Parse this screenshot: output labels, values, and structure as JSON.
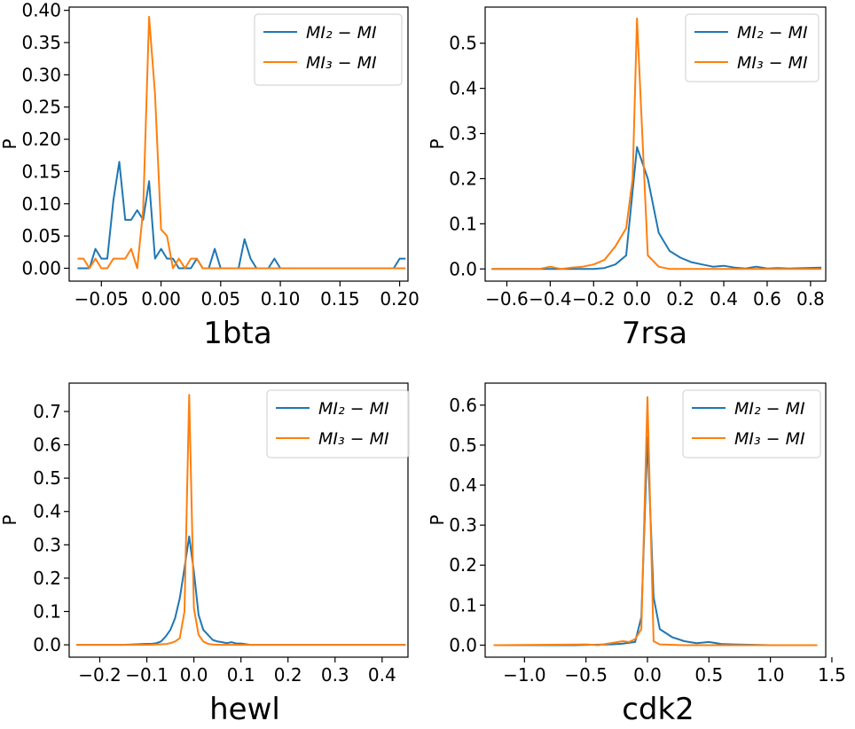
{
  "colors": {
    "series1": "#1f77b4",
    "series2": "#ff7f0e"
  },
  "chart_data": [
    {
      "type": "line",
      "caption": "1bta",
      "ylabel": "P",
      "xlim": [
        -0.077,
        0.207
      ],
      "ylim": [
        -0.02,
        0.405
      ],
      "xticks": [
        -0.05,
        0.0,
        0.05,
        0.1,
        0.15,
        0.2
      ],
      "xtick_labels": [
        "−0.05",
        "0.00",
        "0.05",
        "0.10",
        "0.15",
        "0.20"
      ],
      "yticks": [
        0.0,
        0.05,
        0.1,
        0.15,
        0.2,
        0.25,
        0.3,
        0.35,
        0.4
      ],
      "ytick_labels": [
        "0.00",
        "0.05",
        "0.10",
        "0.15",
        "0.20",
        "0.25",
        "0.30",
        "0.35",
        "0.40"
      ],
      "legend": "top-right",
      "grid": false,
      "series": [
        {
          "name": "MI₂ − MI",
          "x": [
            -0.07,
            -0.065,
            -0.06,
            -0.055,
            -0.05,
            -0.045,
            -0.04,
            -0.035,
            -0.03,
            -0.025,
            -0.02,
            -0.015,
            -0.01,
            -0.005,
            0.0,
            0.005,
            0.01,
            0.015,
            0.02,
            0.025,
            0.03,
            0.035,
            0.04,
            0.045,
            0.05,
            0.055,
            0.06,
            0.065,
            0.07,
            0.075,
            0.08,
            0.085,
            0.09,
            0.095,
            0.1,
            0.105,
            0.11,
            0.115,
            0.12,
            0.15,
            0.195,
            0.2,
            0.205
          ],
          "y": [
            0.0,
            0.0,
            0.0,
            0.03,
            0.015,
            0.015,
            0.105,
            0.165,
            0.075,
            0.075,
            0.09,
            0.075,
            0.135,
            0.015,
            0.03,
            0.015,
            0.015,
            0.0,
            0.0,
            0.0,
            0.015,
            0.0,
            0.0,
            0.03,
            0.0,
            0.0,
            0.0,
            0.0,
            0.045,
            0.015,
            0.0,
            0.0,
            0.0,
            0.015,
            0.0,
            0.0,
            0.0,
            0.0,
            0.0,
            0.0,
            0.0,
            0.015,
            0.015
          ]
        },
        {
          "name": "MI₃ − MI",
          "x": [
            -0.07,
            -0.065,
            -0.06,
            -0.055,
            -0.05,
            -0.045,
            -0.04,
            -0.035,
            -0.03,
            -0.025,
            -0.02,
            -0.015,
            -0.01,
            -0.005,
            0.0,
            0.005,
            0.01,
            0.015,
            0.02,
            0.025,
            0.03,
            0.035,
            0.04,
            0.045,
            0.05,
            0.1,
            0.15,
            0.2,
            0.205
          ],
          "y": [
            0.015,
            0.015,
            0.0,
            0.015,
            0.0,
            0.0,
            0.015,
            0.015,
            0.015,
            0.03,
            0.0,
            0.09,
            0.39,
            0.27,
            0.06,
            0.05,
            0.0,
            0.015,
            0.0,
            0.015,
            0.015,
            0.0,
            0.0,
            0.0,
            0.0,
            0.0,
            0.0,
            0.0,
            0.0
          ]
        }
      ]
    },
    {
      "type": "line",
      "caption": "7rsa",
      "ylabel": "P",
      "xlim": [
        -0.7,
        0.87
      ],
      "ylim": [
        -0.027,
        0.58
      ],
      "xticks": [
        -0.6,
        -0.4,
        -0.2,
        0.0,
        0.2,
        0.4,
        0.6,
        0.8
      ],
      "xtick_labels": [
        "−0.6",
        "−0.4",
        "−0.2",
        "0.0",
        "0.2",
        "0.4",
        "0.6",
        "0.8"
      ],
      "yticks": [
        0.0,
        0.1,
        0.2,
        0.3,
        0.4,
        0.5
      ],
      "ytick_labels": [
        "0.0",
        "0.1",
        "0.2",
        "0.3",
        "0.4",
        "0.5"
      ],
      "legend": "top-right",
      "grid": false,
      "series": [
        {
          "name": "MI₂ − MI",
          "x": [
            -0.67,
            -0.4,
            -0.3,
            -0.2,
            -0.15,
            -0.1,
            -0.05,
            0.0,
            0.05,
            0.1,
            0.15,
            0.2,
            0.25,
            0.3,
            0.35,
            0.4,
            0.45,
            0.5,
            0.55,
            0.6,
            0.65,
            0.7,
            0.85
          ],
          "y": [
            0.0,
            0.0,
            0.0,
            0.0,
            0.002,
            0.01,
            0.03,
            0.27,
            0.2,
            0.08,
            0.04,
            0.025,
            0.015,
            0.01,
            0.005,
            0.007,
            0.003,
            0.001,
            0.005,
            0.001,
            0.002,
            0.001,
            0.003
          ]
        },
        {
          "name": "MI₃ − MI",
          "x": [
            -0.67,
            -0.45,
            -0.4,
            -0.35,
            -0.3,
            -0.25,
            -0.2,
            -0.15,
            -0.1,
            -0.05,
            -0.02,
            0.0,
            0.05,
            0.1,
            0.15,
            0.2,
            0.3,
            0.5,
            0.85
          ],
          "y": [
            0.0,
            0.0,
            0.005,
            0.0,
            0.003,
            0.005,
            0.01,
            0.02,
            0.05,
            0.09,
            0.2,
            0.555,
            0.03,
            0.005,
            0.0,
            0.0,
            0.0,
            0.0,
            0.0
          ]
        }
      ]
    },
    {
      "type": "line",
      "caption": "hewl",
      "ylabel": "P",
      "xlim": [
        -0.265,
        0.455
      ],
      "ylim": [
        -0.037,
        0.785
      ],
      "xticks": [
        -0.2,
        -0.1,
        0.0,
        0.1,
        0.2,
        0.3,
        0.4
      ],
      "xtick_labels": [
        "−0.2",
        "−0.1",
        "0.0",
        "0.1",
        "0.2",
        "0.3",
        "0.4"
      ],
      "yticks": [
        0.0,
        0.1,
        0.2,
        0.3,
        0.4,
        0.5,
        0.6,
        0.7
      ],
      "ytick_labels": [
        "0.0",
        "0.1",
        "0.2",
        "0.3",
        "0.4",
        "0.5",
        "0.6",
        "0.7"
      ],
      "legend": "top-right",
      "grid": false,
      "series": [
        {
          "name": "MI₂ − MI",
          "x": [
            -0.25,
            -0.15,
            -0.1,
            -0.09,
            -0.08,
            -0.07,
            -0.06,
            -0.05,
            -0.04,
            -0.03,
            -0.02,
            -0.01,
            0.0,
            0.01,
            0.02,
            0.03,
            0.04,
            0.05,
            0.06,
            0.07,
            0.08,
            0.09,
            0.1,
            0.12,
            0.2,
            0.3,
            0.45
          ],
          "y": [
            0.0,
            0.0,
            0.003,
            0.003,
            0.005,
            0.01,
            0.025,
            0.045,
            0.08,
            0.14,
            0.23,
            0.325,
            0.22,
            0.09,
            0.045,
            0.03,
            0.015,
            0.01,
            0.008,
            0.005,
            0.008,
            0.004,
            0.004,
            0.0,
            0.0,
            0.0,
            0.0
          ]
        },
        {
          "name": "MI₃ − MI",
          "x": [
            -0.25,
            -0.1,
            -0.06,
            -0.05,
            -0.04,
            -0.03,
            -0.02,
            -0.01,
            0.0,
            0.01,
            0.02,
            0.03,
            0.04,
            0.06,
            0.1,
            0.2,
            0.45
          ],
          "y": [
            0.0,
            0.0,
            0.002,
            0.005,
            0.01,
            0.02,
            0.1,
            0.75,
            0.11,
            0.03,
            0.01,
            0.003,
            0.001,
            0.0,
            0.0,
            0.0,
            0.0
          ]
        }
      ]
    },
    {
      "type": "line",
      "caption": "cdk2",
      "ylabel": "P",
      "xlim": [
        -1.32,
        1.45
      ],
      "ylim": [
        -0.03,
        0.655
      ],
      "xticks": [
        -1.0,
        -0.5,
        0.0,
        0.5,
        1.0,
        1.5
      ],
      "xtick_labels": [
        "−1.0",
        "−0.5",
        "0.0",
        "0.5",
        "1.0",
        "1.5"
      ],
      "yticks": [
        0.0,
        0.1,
        0.2,
        0.3,
        0.4,
        0.5,
        0.6
      ],
      "ytick_labels": [
        "0.0",
        "0.1",
        "0.2",
        "0.3",
        "0.4",
        "0.5",
        "0.6"
      ],
      "legend": "top-right",
      "grid": false,
      "series": [
        {
          "name": "MI₂ − MI",
          "x": [
            -1.25,
            -0.6,
            -0.3,
            -0.2,
            -0.1,
            -0.05,
            0.0,
            0.05,
            0.1,
            0.2,
            0.3,
            0.4,
            0.5,
            0.6,
            0.7,
            1.0,
            1.38
          ],
          "y": [
            0.0,
            0.0,
            0.002,
            0.004,
            0.008,
            0.07,
            0.52,
            0.12,
            0.04,
            0.02,
            0.01,
            0.005,
            0.008,
            0.003,
            0.002,
            0.0,
            0.0
          ]
        },
        {
          "name": "MI₃ − MI",
          "x": [
            -1.25,
            -0.5,
            -0.4,
            -0.3,
            -0.2,
            -0.15,
            -0.1,
            -0.05,
            0.0,
            0.05,
            0.1,
            0.3,
            0.6,
            1.38
          ],
          "y": [
            0.0,
            0.002,
            0.0,
            0.005,
            0.01,
            0.008,
            0.015,
            0.04,
            0.62,
            0.01,
            0.002,
            0.0,
            0.0,
            0.0
          ]
        }
      ]
    }
  ]
}
